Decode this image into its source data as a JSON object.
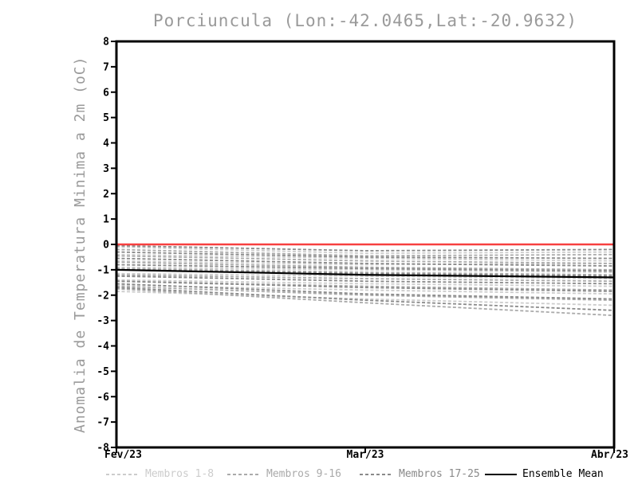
{
  "colors": {
    "background": "#ffffff",
    "frame": "#000000",
    "title_gray": "#9a9a9a",
    "member_group1": "#cccccc",
    "member_group2": "#aaaaaa",
    "member_group3": "#8a8a8a",
    "ensemble_mean": "#000000",
    "zero_line_red": "#f74040"
  },
  "chart_data": {
    "type": "line",
    "title": "Porciuncula (Lon:-42.0465,Lat:-20.9632)",
    "ylabel": "Anomalia de Temperatura Minima a 2m (oC)",
    "xlabel": "",
    "x_categories": [
      "Fev/23",
      "Mar/23",
      "Abr/23"
    ],
    "ylim": [
      -8,
      8
    ],
    "yticks": [
      8,
      7,
      6,
      5,
      4,
      3,
      2,
      1,
      0,
      -1,
      -2,
      -3,
      -4,
      -5,
      -6,
      -7,
      -8
    ],
    "grid": "off",
    "legend_position": "bottom",
    "zero_line": {
      "value": 0,
      "color": "#f74040"
    },
    "series": [
      {
        "name": "Membros 1-8",
        "color": "#cccccc",
        "style": "dashed",
        "members": [
          [
            -0.1,
            -0.35,
            -0.3
          ],
          [
            -0.4,
            -0.55,
            -0.65
          ],
          [
            -0.65,
            -0.8,
            -0.75
          ],
          [
            -0.9,
            -1.0,
            -1.1
          ],
          [
            -1.15,
            -1.25,
            -1.35
          ],
          [
            -1.4,
            -1.55,
            -1.65
          ],
          [
            -1.6,
            -1.8,
            -1.95
          ],
          [
            -1.85,
            -2.15,
            -2.4
          ]
        ]
      },
      {
        "name": "Membros 9-16",
        "color": "#aaaaaa",
        "style": "dashed",
        "members": [
          [
            -0.2,
            -0.45,
            -0.4
          ],
          [
            -0.45,
            -0.65,
            -0.75
          ],
          [
            -0.7,
            -0.9,
            -1.0
          ],
          [
            -0.95,
            -1.1,
            -1.2
          ],
          [
            -1.2,
            -1.35,
            -1.45
          ],
          [
            -1.45,
            -1.65,
            -1.8
          ],
          [
            -1.65,
            -2.0,
            -2.2
          ],
          [
            -1.75,
            -2.3,
            -2.8
          ]
        ]
      },
      {
        "name": "Membros 17-25",
        "color": "#8a8a8a",
        "style": "dashed",
        "members": [
          [
            -0.05,
            -0.25,
            -0.2
          ],
          [
            -0.3,
            -0.5,
            -0.55
          ],
          [
            -0.55,
            -0.75,
            -0.85
          ],
          [
            -0.8,
            -0.95,
            -1.05
          ],
          [
            -1.0,
            -1.15,
            -1.25
          ],
          [
            -1.25,
            -1.45,
            -1.55
          ],
          [
            -1.45,
            -1.7,
            -1.85
          ],
          [
            -1.55,
            -1.95,
            -2.15
          ],
          [
            -1.7,
            -2.2,
            -2.6
          ]
        ]
      },
      {
        "name": "Ensemble Mean",
        "color": "#000000",
        "style": "solid",
        "members": [
          [
            -1.0,
            -1.2,
            -1.3
          ]
        ]
      }
    ]
  }
}
